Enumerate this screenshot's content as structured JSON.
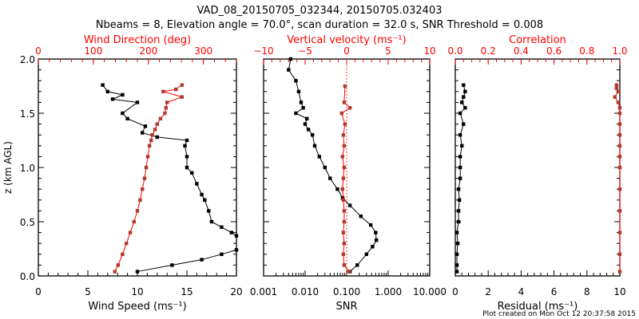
{
  "title": "VAD_08_20150705_032344, 20150705.032403",
  "subtitle": "Nbeams = 8, Elevation angle = 70.0°, scan duration = 32.0 s, SNR Threshold = 0.008",
  "footer": "Plot created on Mon Oct 12 20:37:58 2015",
  "colors": {
    "black": "#000000",
    "red": "#ff0000",
    "series_red": "#b03a2e"
  },
  "chart_data": [
    {
      "type": "line",
      "ylabel": "z (km AGL)",
      "ylim": [
        0,
        2
      ],
      "yticks": [
        "0.0",
        "0.5",
        "1.0",
        "1.5",
        "2.0"
      ],
      "xlabel": "Wind Speed (ms⁻¹)",
      "xlim": [
        0,
        20
      ],
      "xticks": [
        "0",
        "5",
        "10",
        "15",
        "20"
      ],
      "top_label": "Wind Direction (deg)",
      "top_lim": [
        0,
        360
      ],
      "top_ticks": [
        "0",
        "100",
        "200",
        "300"
      ],
      "series": [
        {
          "name": "Wind Speed",
          "axis": "bottom",
          "color": "#000000",
          "x": [
            10,
            13.5,
            16.5,
            18.5,
            20,
            20,
            19.5,
            18.5,
            17.5,
            17.2,
            16.8,
            16.5,
            16,
            15.5,
            15,
            15,
            14.8,
            15,
            12,
            10.5,
            10.8,
            9,
            8.5,
            10,
            7.5,
            8.5,
            7,
            6.5
          ],
          "z": [
            0.04,
            0.1,
            0.15,
            0.2,
            0.24,
            0.37,
            0.4,
            0.45,
            0.5,
            0.6,
            0.7,
            0.75,
            0.85,
            0.95,
            1.0,
            1.1,
            1.2,
            1.25,
            1.28,
            1.32,
            1.38,
            1.45,
            1.5,
            1.6,
            1.63,
            1.67,
            1.7,
            1.76
          ]
        },
        {
          "name": "Wind Direction",
          "axis": "top",
          "color": "#b03a2e",
          "x": [
            139,
            145,
            153,
            160,
            167,
            174,
            180,
            185,
            189,
            193,
            196,
            199,
            202,
            205,
            207,
            212,
            216,
            222,
            230,
            232,
            234,
            261,
            227,
            250,
            261
          ],
          "z": [
            0.04,
            0.1,
            0.2,
            0.3,
            0.4,
            0.5,
            0.6,
            0.7,
            0.8,
            0.9,
            1.0,
            1.1,
            1.2,
            1.25,
            1.3,
            1.35,
            1.4,
            1.45,
            1.5,
            1.55,
            1.6,
            1.65,
            1.7,
            1.72,
            1.76
          ]
        }
      ]
    },
    {
      "type": "line",
      "xlabel": "SNR",
      "xscale": "log",
      "xlim": [
        0.001,
        10
      ],
      "xticks": [
        "0.001",
        "0.010",
        "0.100",
        "1.000",
        "10.000"
      ],
      "top_label": "Vertical velocity (ms⁻¹)",
      "top_lim": [
        -10,
        10
      ],
      "top_ticks": [
        "−10",
        "−5",
        "0",
        "5",
        "10"
      ],
      "series": [
        {
          "name": "SNR",
          "axis": "bottom",
          "color": "#000000",
          "x": [
            0.12,
            0.18,
            0.3,
            0.42,
            0.52,
            0.5,
            0.38,
            0.22,
            0.12,
            0.08,
            0.06,
            0.04,
            0.03,
            0.022,
            0.017,
            0.015,
            0.012,
            0.01,
            0.011,
            0.006,
            0.009,
            0.008,
            0.007,
            0.006,
            0.004,
            0.0045
          ],
          "z": [
            0.04,
            0.1,
            0.2,
            0.27,
            0.33,
            0.4,
            0.47,
            0.55,
            0.65,
            0.72,
            0.8,
            0.9,
            1.0,
            1.1,
            1.2,
            1.3,
            1.35,
            1.4,
            1.45,
            1.5,
            1.55,
            1.6,
            1.7,
            1.8,
            1.9,
            2.0
          ]
        },
        {
          "name": "Vertical velocity",
          "axis": "top",
          "color": "#b03a2e",
          "x": [
            0.3,
            -0.3,
            -0.4,
            -0.3,
            -0.4,
            -0.3,
            -0.3,
            -0.4,
            -0.5,
            -0.4,
            -0.3,
            -0.5,
            -0.3,
            -0.4,
            -0.2,
            -0.6,
            0.4,
            -0.3,
            -0.2
          ],
          "z": [
            0.04,
            0.1,
            0.2,
            0.3,
            0.4,
            0.5,
            0.6,
            0.7,
            0.8,
            0.9,
            1.0,
            1.1,
            1.2,
            1.3,
            1.4,
            1.5,
            1.55,
            1.6,
            1.75
          ]
        }
      ]
    },
    {
      "type": "line",
      "xlabel": "Residual (ms⁻¹)",
      "xlim": [
        0,
        10
      ],
      "xticks": [
        "0",
        "2",
        "4",
        "6",
        "8",
        "10"
      ],
      "top_label": "Correlation",
      "top_lim": [
        0,
        1
      ],
      "top_ticks": [
        "0.0",
        "0.2",
        "0.4",
        "0.6",
        "0.8",
        "1.0"
      ],
      "series": [
        {
          "name": "Residual",
          "axis": "bottom",
          "color": "#000000",
          "x": [
            0.1,
            0.1,
            0.1,
            0.15,
            0.1,
            0.2,
            0.2,
            0.25,
            0.2,
            0.3,
            0.3,
            0.3,
            0.4,
            0.3,
            0.5,
            0.3,
            0.6,
            0.4,
            0.5,
            0.6,
            0.5
          ],
          "z": [
            0.04,
            0.1,
            0.2,
            0.3,
            0.4,
            0.5,
            0.6,
            0.7,
            0.8,
            0.9,
            1.0,
            1.1,
            1.2,
            1.3,
            1.4,
            1.5,
            1.55,
            1.6,
            1.65,
            1.7,
            1.76
          ]
        },
        {
          "name": "Correlation",
          "axis": "top",
          "color": "#b03a2e",
          "x": [
            1,
            1,
            1,
            1,
            1,
            1,
            1,
            1,
            1,
            1,
            1,
            1,
            0.99,
            0.97,
            0.99,
            0.98,
            0.98
          ],
          "z": [
            0.04,
            0.2,
            0.4,
            0.6,
            0.8,
            1.0,
            1.1,
            1.2,
            1.3,
            1.4,
            1.5,
            1.55,
            1.6,
            1.65,
            1.7,
            1.73,
            1.76
          ]
        }
      ]
    }
  ]
}
